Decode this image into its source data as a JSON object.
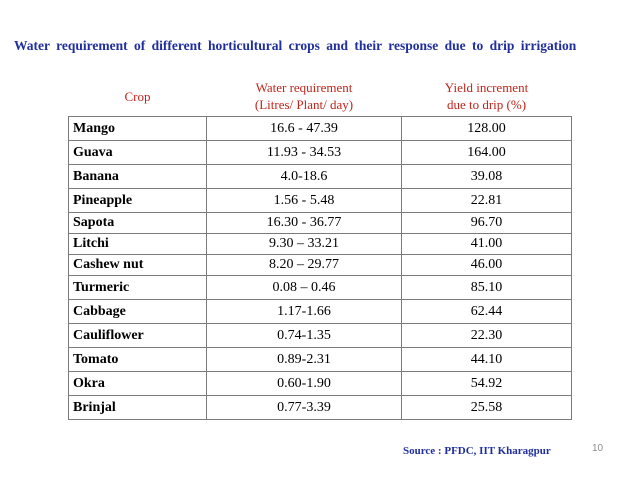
{
  "title": "Water requirement of different horticultural crops and their response due to drip irrigation",
  "table": {
    "headers": {
      "crop": "Crop",
      "water_line1": "Water requirement",
      "water_line2": "(Litres/ Plant/ day)",
      "yield_line1": "Yield increment",
      "yield_line2": "due to drip (%)"
    },
    "rows": [
      {
        "crop": "Mango",
        "water": "16.6 - 47.39",
        "yield": "128.00"
      },
      {
        "crop": "Guava",
        "water": "11.93 - 34.53",
        "yield": "164.00"
      },
      {
        "crop": "Banana",
        "water": "4.0-18.6",
        "yield": "39.08"
      },
      {
        "crop": "Pineapple",
        "water": "1.56 - 5.48",
        "yield": "22.81"
      },
      {
        "crop": "Sapota",
        "water": "16.30 - 36.77",
        "yield": "96.70"
      },
      {
        "crop": "Litchi",
        "water": "9.30 – 33.21",
        "yield": "41.00"
      },
      {
        "crop": "Cashew nut",
        "water": "8.20 – 29.77",
        "yield": "46.00"
      },
      {
        "crop": "Turmeric",
        "water": "0.08 – 0.46",
        "yield": "85.10"
      },
      {
        "crop": "Cabbage",
        "water": "1.17-1.66",
        "yield": "62.44"
      },
      {
        "crop": "Cauliflower",
        "water": "0.74-1.35",
        "yield": "22.30"
      },
      {
        "crop": "Tomato",
        "water": "0.89-2.31",
        "yield": "44.10"
      },
      {
        "crop": "Okra",
        "water": "0.60-1.90",
        "yield": "54.92"
      },
      {
        "crop": "Brinjal",
        "water": "0.77-3.39",
        "yield": "25.58"
      }
    ]
  },
  "source": "Source : PFDC, IIT Kharagpur",
  "page_number": "10",
  "colors": {
    "title": "#1f2f9e",
    "header_text": "#c0241a",
    "border": "#7a7a7a"
  }
}
